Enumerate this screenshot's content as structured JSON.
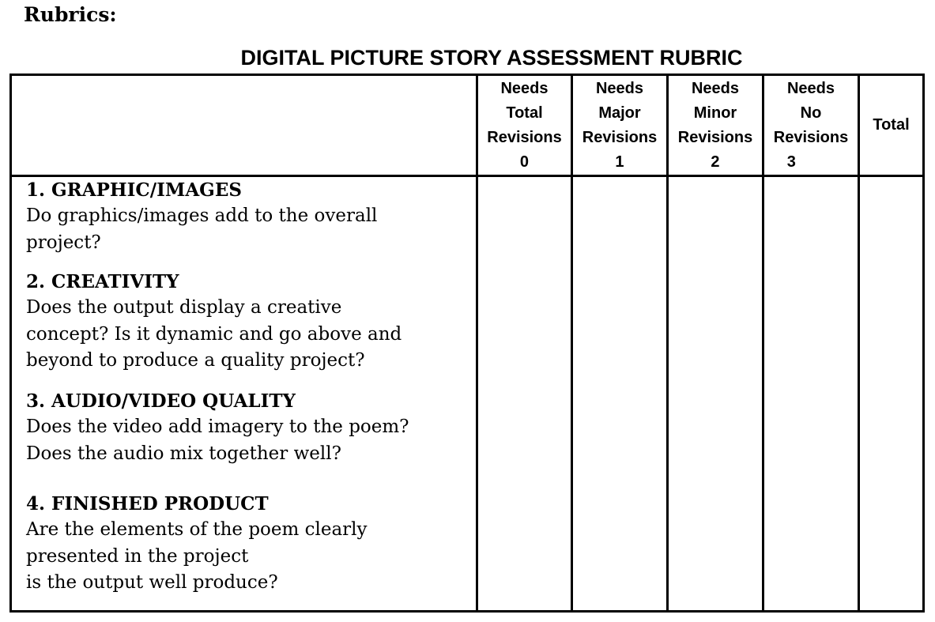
{
  "heading": "Rubrics:",
  "title": "DIGITAL PICTURE STORY ASSESSMENT RUBRIC",
  "columns": [
    {
      "lines": [
        "Needs",
        "Total",
        "Revisions"
      ],
      "score": "0"
    },
    {
      "lines": [
        "Needs",
        "Major",
        "Revisions"
      ],
      "score": "1"
    },
    {
      "lines": [
        "Needs",
        "Minor",
        "Revisions"
      ],
      "score": "2"
    },
    {
      "lines": [
        "Needs",
        "No",
        "Revisions"
      ],
      "score": "3"
    }
  ],
  "total_label": "Total",
  "criteria": [
    {
      "name": "1. GRAPHIC/IMAGES",
      "description": "Do graphics/images add to the overall\nproject?"
    },
    {
      "name": "2. CREATIVITY",
      "description": "Does the output display a creative\nconcept? Is it dynamic and go above and\nbeyond to produce a quality project?"
    },
    {
      "name": "3. AUDIO/VIDEO QUALITY",
      "description": "Does the video add imagery to the poem?\nDoes the audio mix together well?"
    },
    {
      "name": "4. FINISHED PRODUCT",
      "description": "Are the elements of the poem clearly\npresented in the project\nis the output well produce?"
    }
  ]
}
